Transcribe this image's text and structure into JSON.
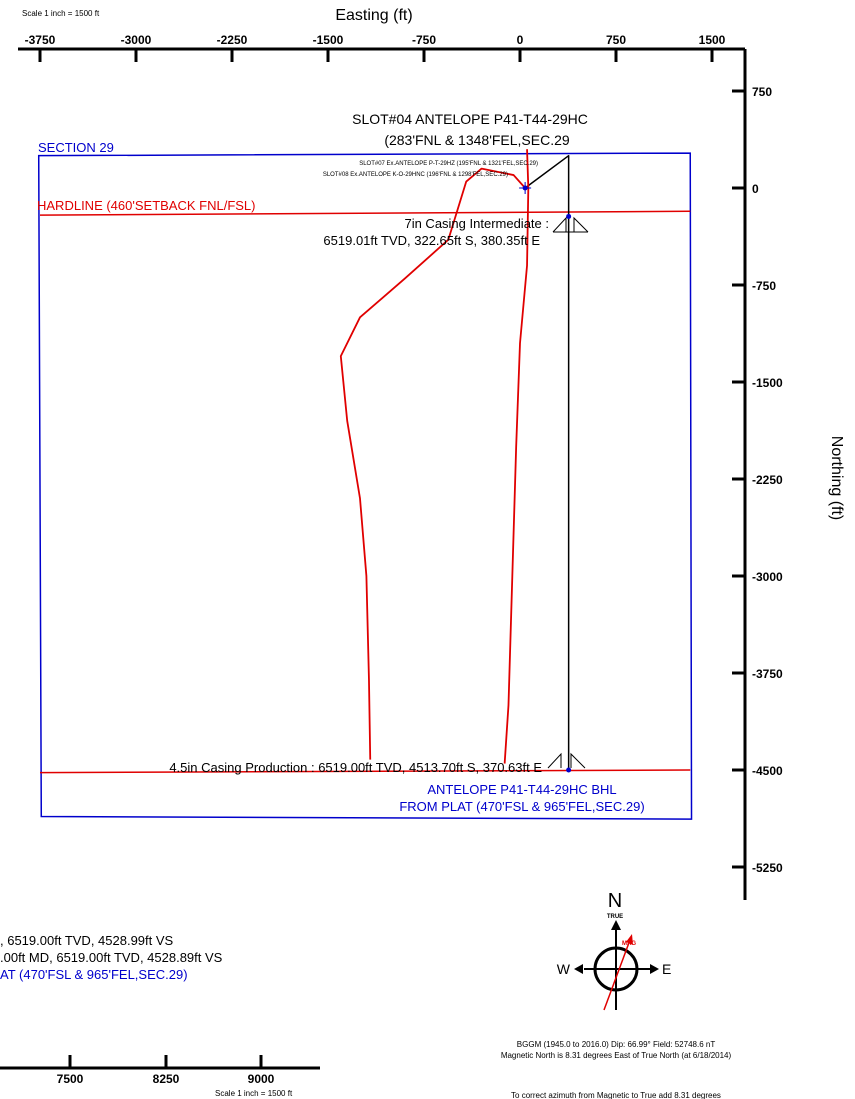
{
  "chart_data": {
    "type": "scatter",
    "subtype": "well plan view",
    "x_axis": {
      "label": "Easting (ft)",
      "scale_note": "Scale 1 inch = 1500 ft",
      "ticks": [
        -3750,
        -3000,
        -2250,
        -1500,
        -750,
        0,
        750,
        1500
      ],
      "tick_labels": [
        "-3750",
        "-3000",
        "-2250",
        "-1500",
        "-750",
        "0",
        "750",
        "1500"
      ],
      "range": [
        -3750,
        1500
      ]
    },
    "y_axis": {
      "label": "Northing (ft)",
      "ticks": [
        750,
        0,
        -750,
        -1500,
        -2250,
        -3000,
        -3750,
        -4500,
        -5250
      ],
      "tick_labels": [
        "750",
        "0",
        "-750",
        "-1500",
        "-2250",
        "-3000",
        "-3750",
        "-4500",
        "-5250"
      ],
      "range": [
        -5250,
        750
      ]
    },
    "bottom_axis": {
      "tick_labels": [
        "7500",
        "8250",
        "9000"
      ],
      "scale_note": "Scale 1 inch = 1500 ft"
    },
    "section_box": {
      "label": "SECTION 29",
      "color": "#0000cc",
      "corners": [
        [
          -3760,
          250
        ],
        [
          1330,
          270
        ],
        [
          1340,
          -4880
        ],
        [
          -3740,
          -4860
        ]
      ]
    },
    "hardlines": [
      {
        "label": "HARDLINE (460'SETBACK FNL/FSL)",
        "color": "#e00000",
        "points": [
          [
            -3750,
            -210
          ],
          [
            1330,
            -180
          ]
        ]
      },
      {
        "label": "",
        "color": "#e00000",
        "points": [
          [
            -3750,
            -4520
          ],
          [
            1330,
            -4500
          ]
        ]
      }
    ],
    "series": [
      {
        "name": "ANTELOPE P41-T44-29HC",
        "color": "#000000",
        "points": [
          [
            40,
            0
          ],
          [
            380,
            250
          ],
          [
            380,
            -220
          ],
          [
            380,
            -4500
          ]
        ]
      },
      {
        "name": "SLOT#07 Ex.ANTELOPE P-T-29HZ",
        "color": "#e00000",
        "points": [
          [
            55,
            300
          ],
          [
            60,
            150
          ],
          [
            65,
            0
          ],
          [
            55,
            -600
          ],
          [
            0,
            -1200
          ],
          [
            -30,
            -2000
          ],
          [
            -60,
            -3000
          ],
          [
            -90,
            -4000
          ],
          [
            -120,
            -4450
          ]
        ]
      },
      {
        "name": "SLOT#08 Ex.ANTELOPE K-O-29HNC",
        "color": "#e00000",
        "points": [
          [
            40,
            0
          ],
          [
            -50,
            100
          ],
          [
            -300,
            150
          ],
          [
            -420,
            50
          ],
          [
            -560,
            -400
          ],
          [
            -900,
            -700
          ],
          [
            -1250,
            -1000
          ],
          [
            -1400,
            -1300
          ],
          [
            -1350,
            -1800
          ],
          [
            -1250,
            -2400
          ],
          [
            -1200,
            -3000
          ],
          [
            -1180,
            -3800
          ],
          [
            -1170,
            -4420
          ]
        ]
      }
    ],
    "annotations": {
      "slot_title": "SLOT#04 ANTELOPE P41-T44-29HC",
      "slot_sub": "(283'FNL & 1348'FEL,SEC.29",
      "slot07": "SLOT#07 Ex.ANTELOPE P-T-29HZ (195'FNL & 1321'FEL,SEC.29)",
      "slot08": "SLOT#08 Ex.ANTELOPE K-O-29HNC (196'FNL & 1298'FEL,SEC.29)",
      "casing_int_1": "7in Casing Intermediate :",
      "casing_int_2": "6519.01ft TVD, 322.65ft S, 380.35ft E",
      "casing_prod": "4.5in Casing Production : 6519.00ft TVD, 4513.70ft S, 370.63ft E",
      "bhl_1": "ANTELOPE P41-T44-29HC BHL",
      "bhl_2": "FROM PLAT (470'FSL & 965'FEL,SEC.29)"
    },
    "lower_notes": {
      "line1": ", 6519.00ft TVD, 4528.99ft VS",
      "line2": ".00ft MD, 6519.00ft TVD, 4528.89ft VS",
      "line3": "AT (470'FSL & 965'FEL,SEC.29)"
    },
    "north_arrow": {
      "n": "N",
      "true": "TRUE",
      "mag": "MAG",
      "w": "W",
      "e": "E",
      "declination_deg": 8.31
    },
    "magnetic_info": {
      "line1": "BGGM (1945.0 to 2016.0) Dip: 66.99°  Field: 52748.6 nT",
      "line2": "Magnetic North is 8.31 degrees East of True North (at 6/18/2014)",
      "line3": "To correct azimuth from Magnetic to True add 8.31 degrees"
    }
  }
}
